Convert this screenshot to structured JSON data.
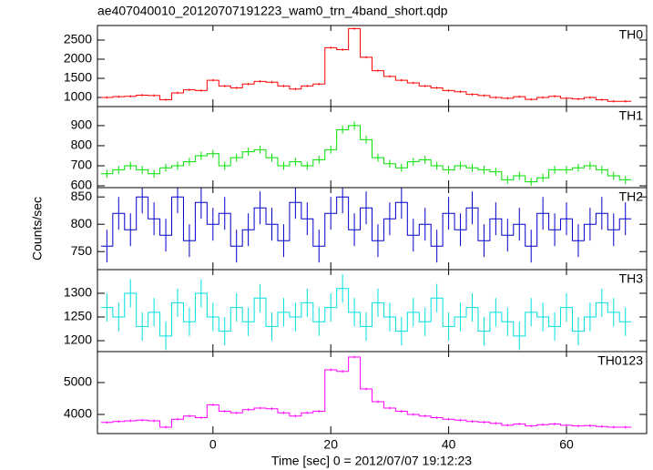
{
  "chart_data": {
    "type": "step",
    "title": "ae407040010_20120707191223_wam0_trn_4band_short.qdp",
    "xlabel": "Time [sec] 0 = 2012/07/07 19:12:23",
    "ylabel": "Counts/sec",
    "xlim": [
      -19.6,
      73.6
    ],
    "xticks": [
      0,
      20,
      40,
      60
    ],
    "x": [
      -18,
      -16,
      -14,
      -12,
      -10,
      -8,
      -6,
      -4,
      -2,
      0,
      2,
      4,
      6,
      8,
      10,
      12,
      14,
      16,
      18,
      20,
      22,
      24,
      26,
      28,
      30,
      32,
      34,
      36,
      38,
      40,
      42,
      44,
      46,
      48,
      50,
      52,
      54,
      56,
      58,
      60,
      62,
      64,
      66,
      68,
      70
    ],
    "bin_width": 2,
    "panels": [
      {
        "name": "TH0",
        "color": "#ff0000",
        "ylim": [
          762,
          2880
        ],
        "yticks": [
          1000,
          1500,
          2000,
          2500
        ],
        "error": 30,
        "values": [
          1000,
          1020,
          1030,
          1060,
          1050,
          940,
          1120,
          1200,
          1180,
          1450,
          1300,
          1250,
          1350,
          1420,
          1400,
          1300,
          1220,
          1300,
          1350,
          2300,
          2250,
          2800,
          2050,
          1700,
          1550,
          1450,
          1380,
          1300,
          1250,
          1180,
          1150,
          1080,
          1050,
          1000,
          980,
          1020,
          950,
          1000,
          1030,
          980,
          960,
          1000,
          940,
          900,
          900
        ]
      },
      {
        "name": "TH1",
        "color": "#00e000",
        "ylim": [
          591,
          995
        ],
        "yticks": [
          600,
          700,
          800,
          900
        ],
        "error": 20,
        "values": [
          660,
          680,
          700,
          680,
          660,
          690,
          700,
          720,
          750,
          760,
          700,
          740,
          770,
          780,
          740,
          700,
          720,
          700,
          730,
          780,
          880,
          900,
          830,
          740,
          710,
          690,
          720,
          730,
          700,
          680,
          700,
          690,
          680,
          670,
          630,
          650,
          620,
          640,
          680,
          680,
          690,
          700,
          680,
          650,
          630
        ]
      },
      {
        "name": "TH2",
        "color": "#0000cc",
        "ylim": [
          717,
          867
        ],
        "yticks": [
          750,
          800,
          850
        ],
        "error": 30,
        "values": [
          760,
          820,
          790,
          850,
          810,
          780,
          850,
          770,
          840,
          800,
          820,
          760,
          790,
          830,
          800,
          770,
          840,
          810,
          760,
          820,
          850,
          790,
          830,
          770,
          810,
          840,
          780,
          800,
          760,
          820,
          790,
          830,
          770,
          810,
          780,
          800,
          760,
          820,
          790,
          810,
          770,
          800,
          820,
          790,
          810
        ]
      },
      {
        "name": "TH3",
        "color": "#00e0e0",
        "ylim": [
          1177,
          1350
        ],
        "yticks": [
          1200,
          1250,
          1300
        ],
        "error": 30,
        "values": [
          1270,
          1250,
          1300,
          1230,
          1260,
          1210,
          1280,
          1240,
          1300,
          1250,
          1220,
          1270,
          1240,
          1290,
          1230,
          1260,
          1250,
          1280,
          1240,
          1270,
          1310,
          1260,
          1230,
          1280,
          1250,
          1220,
          1260,
          1240,
          1290,
          1230,
          1250,
          1270,
          1220,
          1260,
          1240,
          1210,
          1260,
          1250,
          1230,
          1270,
          1220,
          1250,
          1280,
          1260,
          1240
        ]
      },
      {
        "name": "TH0123",
        "color": "#ff00ff",
        "ylim": [
          3400,
          5971
        ],
        "yticks": [
          4000,
          5000
        ],
        "error": 40,
        "values": [
          3750,
          3780,
          3800,
          3820,
          3800,
          3600,
          3850,
          3950,
          3900,
          4300,
          4100,
          4050,
          4150,
          4200,
          4180,
          4050,
          3950,
          4050,
          4100,
          5400,
          5350,
          5800,
          4800,
          4400,
          4200,
          4100,
          4000,
          3950,
          3900,
          3850,
          3820,
          3780,
          3760,
          3720,
          3660,
          3700,
          3640,
          3680,
          3700,
          3660,
          3640,
          3650,
          3620,
          3600,
          3600
        ]
      }
    ]
  }
}
